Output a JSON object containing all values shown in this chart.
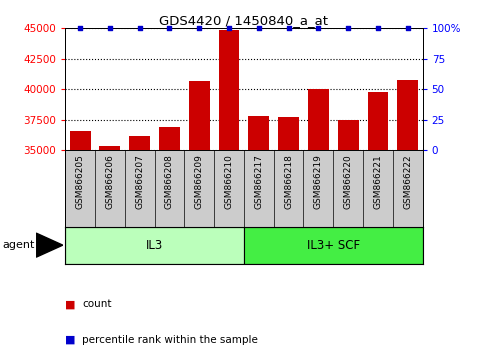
{
  "title": "GDS4420 / 1450840_a_at",
  "samples": [
    "GSM866205",
    "GSM866206",
    "GSM866207",
    "GSM866208",
    "GSM866209",
    "GSM866210",
    "GSM866217",
    "GSM866218",
    "GSM866219",
    "GSM866220",
    "GSM866221",
    "GSM866222"
  ],
  "counts": [
    36600,
    35400,
    36200,
    36900,
    40700,
    44900,
    37800,
    37700,
    40000,
    37500,
    39800,
    40800
  ],
  "percentile_ranks": [
    100,
    100,
    100,
    100,
    100,
    100,
    100,
    100,
    100,
    100,
    100,
    100
  ],
  "bar_color": "#cc0000",
  "dot_color": "#0000cc",
  "ylim": [
    35000,
    45000
  ],
  "yticks_left": [
    35000,
    37500,
    40000,
    42500,
    45000
  ],
  "yticks_right": [
    0,
    25,
    50,
    75,
    100
  ],
  "yright_lim": [
    0,
    100
  ],
  "group1_label": "IL3",
  "group1_color": "#bbffbb",
  "group1_indices": [
    0,
    1,
    2,
    3,
    4,
    5
  ],
  "group2_label": "IL3+ SCF",
  "group2_color": "#44ee44",
  "group2_indices": [
    6,
    7,
    8,
    9,
    10,
    11
  ],
  "agent_label": "agent",
  "legend_count_label": "count",
  "legend_pct_label": "percentile rank within the sample",
  "background_color": "#ffffff",
  "tick_area_color": "#cccccc"
}
